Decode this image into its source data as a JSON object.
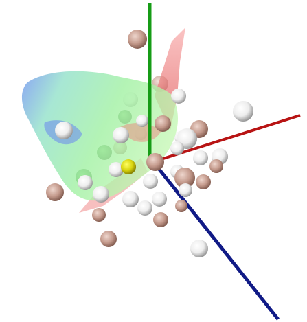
{
  "colors": {
    "background": "#ffffff",
    "axis_x": "#b81414",
    "axis_y": "#169c16",
    "axis_z": "#101a86",
    "surface_front": "#8fe89c",
    "surface_back": "#6a8ff0",
    "surface_ridge": "#f07a7a",
    "sphere_white": "#ffffff",
    "sphere_tan": "#c49a8c",
    "sphere_green": "#3f7f3a",
    "sphere_yellow": "#d8d40c"
  }
}
